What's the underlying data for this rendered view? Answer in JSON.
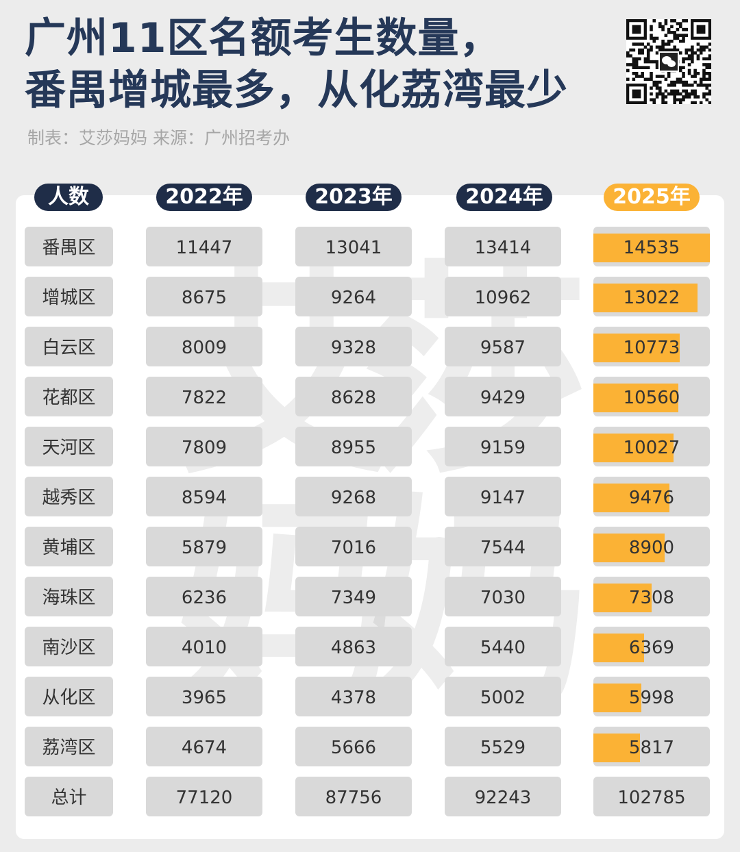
{
  "title_line1": "广州11区名额考生数量，",
  "title_line2": "番禺增城最多，从化荔湾最少",
  "subtitle": "制表：艾莎妈妈  来源：广州招考办",
  "watermark": [
    "艾",
    "莎",
    "妈",
    "妈"
  ],
  "qr_icon": "wechat-qr-icon",
  "colors": {
    "header_dark": "#1f2d48",
    "accent": "#fbb235",
    "cell": "#d9d9d9"
  },
  "chart_data": {
    "type": "table",
    "row_header": "人数",
    "columns": [
      "2022年",
      "2023年",
      "2024年",
      "2025年"
    ],
    "highlight_column": "2025年",
    "rows": [
      {
        "district": "番禺区",
        "values": [
          11447,
          13041,
          13414,
          14535
        ]
      },
      {
        "district": "增城区",
        "values": [
          8675,
          9264,
          10962,
          13022
        ]
      },
      {
        "district": "白云区",
        "values": [
          8009,
          9328,
          9587,
          10773
        ]
      },
      {
        "district": "花都区",
        "values": [
          7822,
          8628,
          9429,
          10560
        ]
      },
      {
        "district": "天河区",
        "values": [
          7809,
          8955,
          9159,
          10027
        ]
      },
      {
        "district": "越秀区",
        "values": [
          8594,
          9268,
          9147,
          9476
        ]
      },
      {
        "district": "黄埔区",
        "values": [
          5879,
          7016,
          7544,
          8900
        ]
      },
      {
        "district": "海珠区",
        "values": [
          6236,
          7349,
          7030,
          7308
        ]
      },
      {
        "district": "南沙区",
        "values": [
          4010,
          4863,
          5440,
          6369
        ]
      },
      {
        "district": "从化区",
        "values": [
          3965,
          4378,
          5002,
          5998
        ]
      },
      {
        "district": "荔湾区",
        "values": [
          4674,
          5666,
          5529,
          5817
        ]
      }
    ],
    "total": {
      "district": "总计",
      "values": [
        77120,
        87756,
        92243,
        102785
      ]
    }
  }
}
